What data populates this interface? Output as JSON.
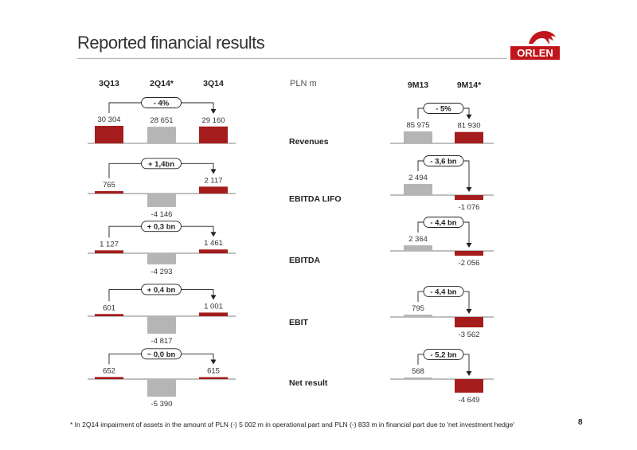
{
  "title": "Reported financial results",
  "unit_label": "PLN m",
  "footnote": "* In 2Q14 impairment of assets in the amount of PLN (-) 5 002 m in operational part and PLN (-) 833 m in financial part due to 'net investment hedge'",
  "page_number": "8",
  "logo_text": "ORLEN",
  "colors": {
    "red": "#a51c1c",
    "grey": "#b5b5b5",
    "axis": "#555555",
    "text": "#333333"
  },
  "chart_data": [
    {
      "type": "bar",
      "group": "quarterly",
      "categories": [
        "3Q13",
        "2Q14*",
        "3Q14"
      ],
      "panels": [
        {
          "metric": "Revenues",
          "values": [
            30304,
            28651,
            29160
          ],
          "labels": [
            "30 304",
            "28 651",
            "29 160"
          ],
          "change": "- 4%"
        },
        {
          "metric": "EBITDA LIFO",
          "values": [
            765,
            -4146,
            2117
          ],
          "labels": [
            "765",
            "-4 146",
            "2 117"
          ],
          "change": "+ 1,4bn"
        },
        {
          "metric": "EBITDA",
          "values": [
            1127,
            -4293,
            1461
          ],
          "labels": [
            "1 127",
            "-4 293",
            "1 461"
          ],
          "change": "+ 0,3 bn"
        },
        {
          "metric": "EBIT",
          "values": [
            601,
            -4817,
            1001
          ],
          "labels": [
            "601",
            "-4 817",
            "1 001"
          ],
          "change": "+ 0,4 bn"
        },
        {
          "metric": "Net result",
          "values": [
            652,
            -5390,
            615
          ],
          "labels": [
            "652",
            "-5 390",
            "615"
          ],
          "change": "~ 0,0 bn"
        }
      ]
    },
    {
      "type": "bar",
      "group": "nine_months",
      "categories": [
        "9M13",
        "9M14*"
      ],
      "panels": [
        {
          "metric": "Revenues",
          "values": [
            85975,
            81930
          ],
          "labels": [
            "85 975",
            "81 930"
          ],
          "change": "- 5%"
        },
        {
          "metric": "EBITDA LIFO",
          "values": [
            2494,
            -1076
          ],
          "labels": [
            "2 494",
            "-1 076"
          ],
          "change": "- 3,6 bn"
        },
        {
          "metric": "EBITDA",
          "values": [
            2364,
            -2056
          ],
          "labels": [
            "2 364",
            "-2 056"
          ],
          "change": "- 4,4 bn"
        },
        {
          "metric": "EBIT",
          "values": [
            795,
            -3562
          ],
          "labels": [
            "795",
            "-3 562"
          ],
          "change": "- 4,4 bn"
        },
        {
          "metric": "Net result",
          "values": [
            568,
            -4649
          ],
          "labels": [
            "568",
            "-4 649"
          ],
          "change": "- 5,2 bn"
        }
      ]
    }
  ]
}
